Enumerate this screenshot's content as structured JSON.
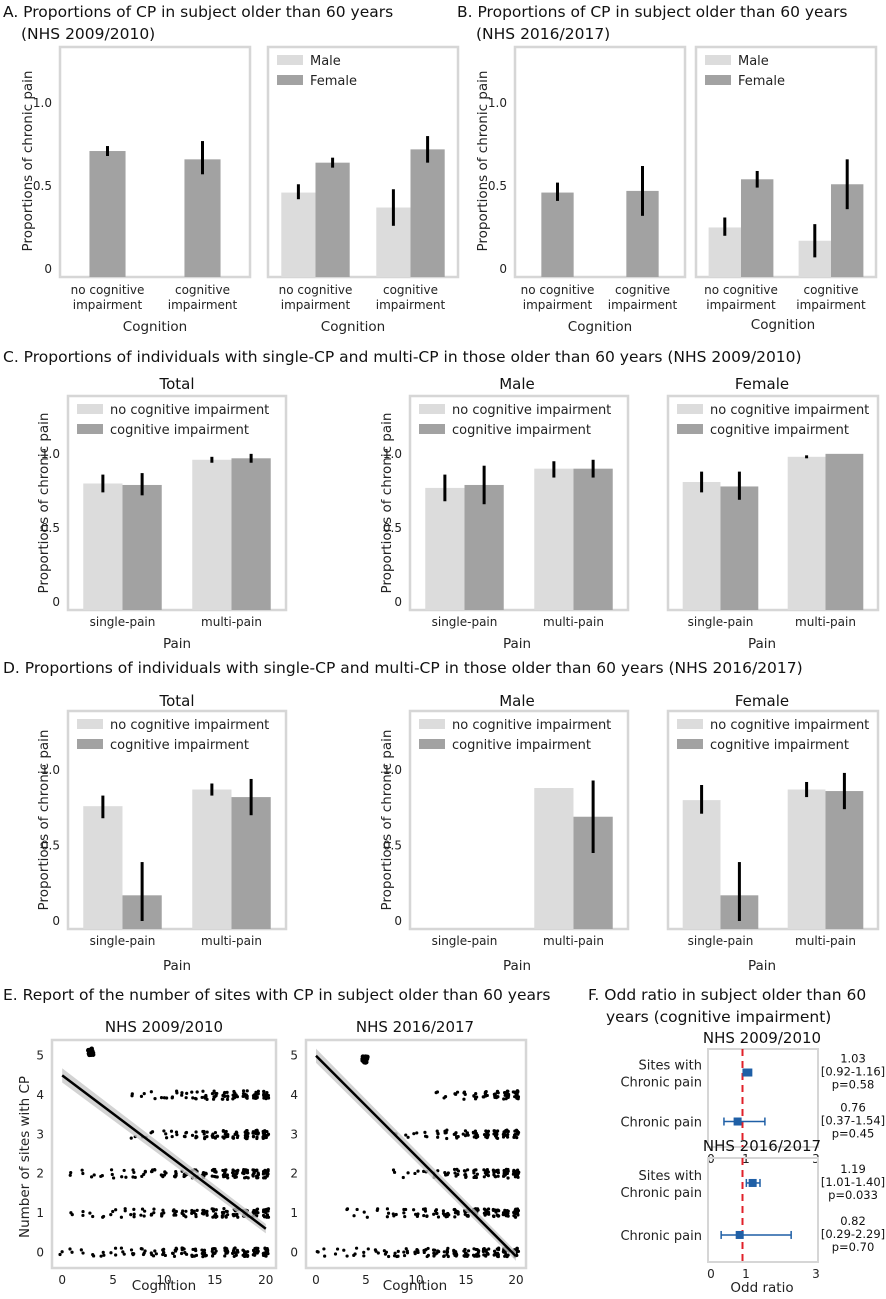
{
  "sections": {
    "A": [
      "A. Proportions of CP in subject older than 60 years",
      "(NHS 2009/2010)"
    ],
    "B": [
      "B. Proportions of CP in subject older than 60 years",
      "(NHS 2016/2017)"
    ],
    "C": "C. Proportions of individuals with single-CP and multi-CP in those older than 60 years (NHS 2009/2010)",
    "D": "D. Proportions of individuals with single-CP and multi-CP in those older than 60 years (NHS 2016/2017)",
    "E": "E. Report of the number of sites with CP in subject older than 60 years",
    "F": [
      "F. Odd ratio in subject older than 60",
      "years (cognitive impairment)"
    ]
  },
  "colors": {
    "light": "#dcdcdc",
    "dark": "#a2a2a2",
    "frame": "#d6d6d6",
    "err": "#000000",
    "marker": "#1f5fa6",
    "refline": "#e0202a"
  },
  "chart_data": [
    {
      "id": "A1",
      "type": "bar",
      "ylabel": "Proportions of chronic pain",
      "xlabel": "Cognition",
      "ylim": [
        0,
        1.3
      ],
      "yticks": [
        "0",
        "0.5",
        "1.0"
      ],
      "categories": [
        [
          "no cognitive",
          "impairment"
        ],
        [
          "cognitive",
          "impairment"
        ]
      ],
      "legend": null,
      "series": [
        {
          "name": "All",
          "color": "dark",
          "values": [
            0.71,
            0.66
          ],
          "err": [
            [
              0.68,
              0.74
            ],
            [
              0.57,
              0.77
            ]
          ]
        }
      ]
    },
    {
      "id": "A2",
      "type": "bar",
      "ylabel": "",
      "xlabel": "Cognition",
      "ylim": [
        0,
        1.3
      ],
      "yticks": [],
      "categories": [
        [
          "no cognitive",
          "impairment"
        ],
        [
          "cognitive",
          "impairment"
        ]
      ],
      "legend": [
        "Male",
        "Female"
      ],
      "series": [
        {
          "name": "Male",
          "color": "light",
          "values": [
            0.46,
            0.37
          ],
          "err": [
            [
              0.42,
              0.51
            ],
            [
              0.26,
              0.48
            ]
          ]
        },
        {
          "name": "Female",
          "color": "dark",
          "values": [
            0.64,
            0.72
          ],
          "err": [
            [
              0.61,
              0.67
            ],
            [
              0.64,
              0.8
            ]
          ]
        }
      ]
    },
    {
      "id": "B1",
      "type": "bar",
      "ylabel": "Proportions of chronic pain",
      "xlabel": "Cognition",
      "ylim": [
        0,
        1.3
      ],
      "yticks": [
        "0",
        "0.5",
        "1.0"
      ],
      "categories": [
        [
          "no cognitive",
          "impairment"
        ],
        [
          "cognitive",
          "impairment"
        ]
      ],
      "legend": null,
      "series": [
        {
          "name": "All",
          "color": "dark",
          "values": [
            0.46,
            0.47
          ],
          "err": [
            [
              0.41,
              0.52
            ],
            [
              0.32,
              0.62
            ]
          ]
        }
      ]
    },
    {
      "id": "B2",
      "type": "bar",
      "ylabel": "",
      "xlabel": "Cognition",
      "ylim": [
        0,
        1.3
      ],
      "yticks": [],
      "categories": [
        [
          "no cognitive",
          "impairment"
        ],
        [
          "cognitive",
          "impairment"
        ]
      ],
      "legend": [
        "Male",
        "Female"
      ],
      "series": [
        {
          "name": "Male",
          "color": "light",
          "values": [
            0.25,
            0.17
          ],
          "err": [
            [
              0.2,
              0.31
            ],
            [
              0.07,
              0.27
            ]
          ]
        },
        {
          "name": "Female",
          "color": "dark",
          "values": [
            0.54,
            0.51
          ],
          "err": [
            [
              0.49,
              0.59
            ],
            [
              0.36,
              0.66
            ]
          ]
        }
      ]
    },
    {
      "id": "C1",
      "type": "bar",
      "title": "Total",
      "ylabel": "Proportions of chronic pain",
      "xlabel": "Pain",
      "ylim": [
        0,
        1.35
      ],
      "yticks": [
        "0",
        "0.5",
        "1.0"
      ],
      "categories": [
        "single-pain",
        "multi-pain"
      ],
      "legend": [
        "no cognitive impairment",
        "cognitive impairment"
      ],
      "series": [
        {
          "name": "no cognitive impairment",
          "color": "light",
          "values": [
            0.8,
            0.96
          ],
          "err": [
            [
              0.74,
              0.86
            ],
            [
              0.94,
              0.98
            ]
          ]
        },
        {
          "name": "cognitive impairment",
          "color": "dark",
          "values": [
            0.79,
            0.97
          ],
          "err": [
            [
              0.72,
              0.87
            ],
            [
              0.94,
              1.0
            ]
          ]
        }
      ]
    },
    {
      "id": "C2",
      "type": "bar",
      "title": "Male",
      "ylabel": "Proportions of chronic pain",
      "xlabel": "Pain",
      "ylim": [
        0,
        1.35
      ],
      "yticks": [
        "0",
        "0.5",
        "1.0"
      ],
      "categories": [
        "single-pain",
        "multi-pain"
      ],
      "legend": [
        "no cognitive impairment",
        "cognitive impairment"
      ],
      "series": [
        {
          "name": "no cognitive impairment",
          "color": "light",
          "values": [
            0.77,
            0.9
          ],
          "err": [
            [
              0.68,
              0.86
            ],
            [
              0.84,
              0.95
            ]
          ]
        },
        {
          "name": "cognitive impairment",
          "color": "dark",
          "values": [
            0.79,
            0.9
          ],
          "err": [
            [
              0.66,
              0.92
            ],
            [
              0.84,
              0.96
            ]
          ]
        }
      ]
    },
    {
      "id": "C3",
      "type": "bar",
      "title": "Female",
      "ylabel": "",
      "xlabel": "Pain",
      "ylim": [
        0,
        1.35
      ],
      "yticks": [],
      "categories": [
        "single-pain",
        "multi-pain"
      ],
      "legend": [
        "no cognitive impairment",
        "cognitive impairment"
      ],
      "series": [
        {
          "name": "no cognitive impairment",
          "color": "light",
          "values": [
            0.81,
            0.98
          ],
          "err": [
            [
              0.74,
              0.88
            ],
            [
              0.97,
              0.99
            ]
          ]
        },
        {
          "name": "cognitive impairment",
          "color": "dark",
          "values": [
            0.78,
            1.0
          ],
          "err": [
            [
              0.69,
              0.88
            ],
            [
              1.0,
              1.0
            ]
          ]
        }
      ]
    },
    {
      "id": "D1",
      "type": "bar",
      "title": "Total",
      "ylabel": "Proportions of chronic pain",
      "xlabel": "Pain",
      "ylim": [
        0,
        1.35
      ],
      "yticks": [
        "0",
        "0.5",
        "1.0"
      ],
      "categories": [
        "single-pain",
        "multi-pain"
      ],
      "legend": [
        "no cognitive impairment",
        "cognitive impairment"
      ],
      "series": [
        {
          "name": "no cognitive impairment",
          "color": "light",
          "values": [
            0.76,
            0.87
          ],
          "err": [
            [
              0.68,
              0.83
            ],
            [
              0.83,
              0.91
            ]
          ]
        },
        {
          "name": "cognitive impairment",
          "color": "dark",
          "values": [
            0.17,
            0.82
          ],
          "err": [
            [
              0,
              0.39
            ],
            [
              0.7,
              0.94
            ]
          ]
        }
      ]
    },
    {
      "id": "D2",
      "type": "bar",
      "title": "Male",
      "ylabel": "Proportions of chronic pain",
      "xlabel": "Pain",
      "ylim": [
        0,
        1.35
      ],
      "yticks": [
        "0",
        "0.5",
        "1.0"
      ],
      "categories": [
        "single-pain",
        "multi-pain"
      ],
      "legend": [
        "no cognitive impairment",
        "cognitive impairment"
      ],
      "series": [
        {
          "name": "no cognitive impairment",
          "color": "light",
          "values": [
            0,
            0.88
          ],
          "err": null
        },
        {
          "name": "cognitive impairment",
          "color": "dark",
          "values": [
            0,
            0.69
          ],
          "err": [
            null,
            [
              0.45,
              0.93
            ]
          ]
        }
      ]
    },
    {
      "id": "D3",
      "type": "bar",
      "title": "Female",
      "ylabel": "",
      "xlabel": "Pain",
      "ylim": [
        0,
        1.35
      ],
      "yticks": [],
      "categories": [
        "single-pain",
        "multi-pain"
      ],
      "legend": [
        "no cognitive impairment",
        "cognitive impairment"
      ],
      "series": [
        {
          "name": "no cognitive impairment",
          "color": "light",
          "values": [
            0.8,
            0.87
          ],
          "err": [
            [
              0.71,
              0.9
            ],
            [
              0.82,
              0.92
            ]
          ]
        },
        {
          "name": "cognitive impairment",
          "color": "dark",
          "values": [
            0.17,
            0.86
          ],
          "err": [
            [
              0,
              0.39
            ],
            [
              0.74,
              0.98
            ]
          ]
        }
      ]
    },
    {
      "id": "E1",
      "type": "scatter",
      "title": "NHS 2009/2010",
      "ylabel": "Number of sites with CP",
      "xlabel": "Cognition",
      "xlim": [
        -1,
        21
      ],
      "ylim": [
        -0.4,
        5.4
      ],
      "xticks": [
        0,
        5,
        10,
        15,
        20
      ],
      "yticks": [
        0,
        1,
        2,
        3,
        4,
        5
      ],
      "levels": [
        {
          "y": 0,
          "xmin": 0,
          "xmax": 20
        },
        {
          "y": 1,
          "xmin": 1,
          "xmax": 20
        },
        {
          "y": 2,
          "xmin": 1,
          "xmax": 20
        },
        {
          "y": 3,
          "xmin": 7,
          "xmax": 20
        },
        {
          "y": 4,
          "xmin": 7,
          "xmax": 20
        }
      ],
      "blob": {
        "x": 2.8,
        "y": 5.1
      },
      "fit": {
        "x": [
          0,
          20
        ],
        "y": [
          4.5,
          0.6
        ]
      }
    },
    {
      "id": "E2",
      "type": "scatter",
      "title": "NHS 2016/2017",
      "ylabel": "",
      "xlabel": "Cognition",
      "xlim": [
        -1,
        21
      ],
      "ylim": [
        -0.4,
        5.4
      ],
      "xticks": [
        0,
        5,
        10,
        15,
        20
      ],
      "yticks": [
        0,
        1,
        2,
        3,
        4,
        5
      ],
      "levels": [
        {
          "y": 0,
          "xmin": 0,
          "xmax": 20
        },
        {
          "y": 1,
          "xmin": 3,
          "xmax": 20
        },
        {
          "y": 2,
          "xmin": 8,
          "xmax": 20
        },
        {
          "y": 3,
          "xmin": 8,
          "xmax": 20
        },
        {
          "y": 4,
          "xmin": 12,
          "xmax": 20
        }
      ],
      "blob": {
        "x": 4.9,
        "y": 4.9
      },
      "fit": {
        "x": [
          0,
          20
        ],
        "y": [
          5.0,
          -0.1
        ]
      }
    },
    {
      "id": "F1",
      "type": "forest",
      "title": "NHS 2009/2010",
      "xlabel": "",
      "xlim": [
        0,
        3
      ],
      "xticks": [
        "0",
        "1",
        "3"
      ],
      "ref": 0.9,
      "rows": [
        {
          "label": [
            "Sites with",
            "Chronic pain"
          ],
          "or": 1.03,
          "lo": 0.92,
          "hi": 1.16,
          "ann": [
            "1.03",
            "[0.92-1.16]",
            "p=0.58"
          ]
        },
        {
          "label": [
            "Chronic pain"
          ],
          "or": 0.76,
          "lo": 0.37,
          "hi": 1.54,
          "ann": [
            "0.76",
            "[0.37-1.54]",
            "p=0.45"
          ]
        }
      ]
    },
    {
      "id": "F2",
      "type": "forest",
      "title": "NHS 2016/2017",
      "xlabel": "Odd ratio",
      "xlim": [
        0,
        3
      ],
      "xticks": [
        "0",
        "1",
        "3"
      ],
      "ref": 0.9,
      "rows": [
        {
          "label": [
            "Sites with",
            "Chronic pain"
          ],
          "or": 1.19,
          "lo": 1.01,
          "hi": 1.4,
          "ann": [
            "1.19",
            "[1.01-1.40]",
            "p=0.033"
          ]
        },
        {
          "label": [
            "Chronic pain"
          ],
          "or": 0.82,
          "lo": 0.29,
          "hi": 2.29,
          "ann": [
            "0.82",
            "[0.29-2.29]",
            "p=0.70"
          ]
        }
      ]
    }
  ]
}
